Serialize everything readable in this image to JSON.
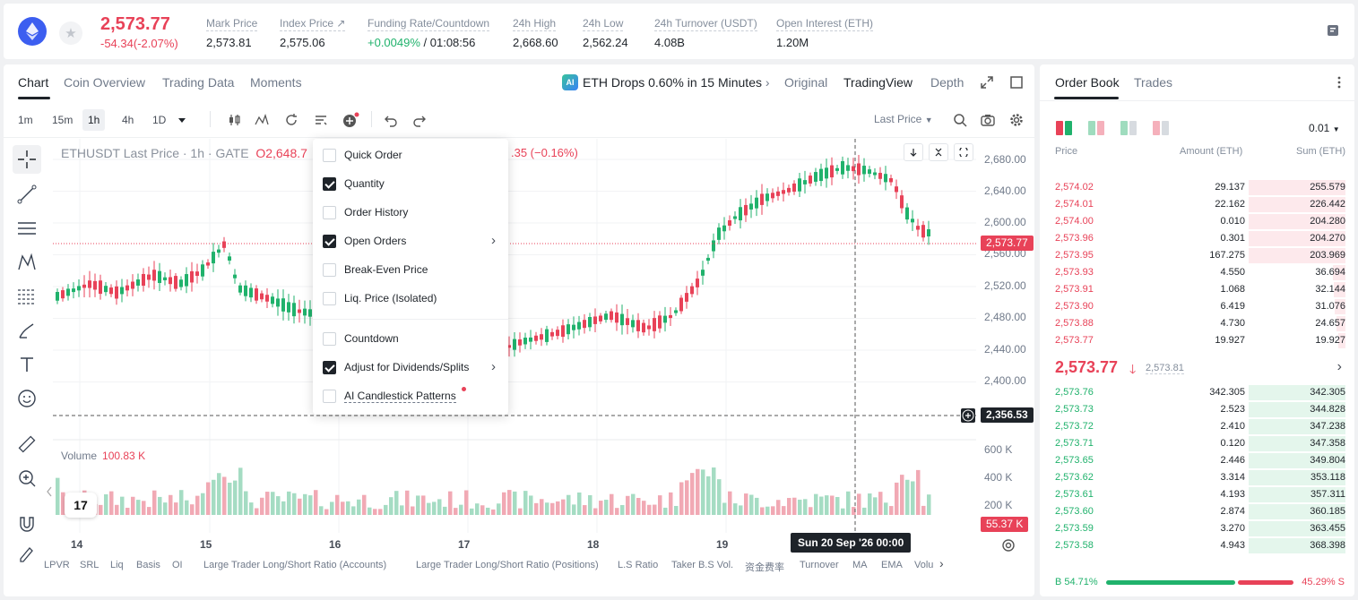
{
  "ticker": {
    "last_price": "2,573.77",
    "change": "-54.34(-2.07%)",
    "stats": [
      {
        "label": "Mark Price",
        "value": "2,573.81"
      },
      {
        "label": "Index Price ↗",
        "value": "2,575.06"
      },
      {
        "label": "Funding Rate/Countdown",
        "value_green": "+0.0049%",
        "value": " / 01:08:56"
      },
      {
        "label": "24h High",
        "value": "2,668.60"
      },
      {
        "label": "24h Low",
        "value": "2,562.24"
      },
      {
        "label": "24h Turnover (USDT)",
        "value": "4.08B"
      },
      {
        "label": "Open Interest (ETH)",
        "value": "1.20M"
      }
    ]
  },
  "chart_tabs": [
    "Chart",
    "Coin Overview",
    "Trading Data",
    "Moments"
  ],
  "ai_alert": {
    "badge": "AI",
    "text": "ETH Drops 0.60% in 15 Minutes",
    "chevron": "›"
  },
  "view_tabs": [
    "Original",
    "TradingView",
    "Depth"
  ],
  "intervals": [
    "1m",
    "15m",
    "1h",
    "4h",
    "1D"
  ],
  "price_type": "Last Price",
  "legend": {
    "main": "ETHUSDT Last Price · 1h · GATE",
    "open": "O2,648.7",
    "tail": ".35 (−0.16%)"
  },
  "volume": {
    "label": "Volume",
    "value": "100.83 K"
  },
  "price_axis": [
    "2,680.00",
    "2,640.00",
    "2,600.00",
    "2,560.00",
    "2,520.00",
    "2,480.00",
    "2,440.00",
    "2,400.00"
  ],
  "volume_axis": [
    "600 K",
    "400 K",
    "200 K"
  ],
  "price_tags": {
    "last": "2,573.77",
    "crosshair": "2,356.53",
    "volume": "55.37 K"
  },
  "x_axis": [
    "14",
    "15",
    "16",
    "17",
    "18",
    "19"
  ],
  "date_tip": "Sun 20 Sep '26   00:00",
  "tv_logo": "17",
  "settings_menu": [
    {
      "label": "Quick Order",
      "checked": false
    },
    {
      "label": "Quantity",
      "checked": true
    },
    {
      "label": "Order History",
      "checked": false
    },
    {
      "label": "Open Orders",
      "checked": true,
      "submenu": true
    },
    {
      "label": "Break-Even Price",
      "checked": false
    },
    {
      "label": "Liq. Price (Isolated)",
      "checked": false
    },
    {
      "label": "Countdown",
      "checked": false
    },
    {
      "label": "Adjust for Dividends/Splits",
      "checked": true,
      "submenu": true
    },
    {
      "label": "AI Candlestick Patterns",
      "checked": false,
      "new_dot": true
    }
  ],
  "indicators": [
    "LPVR",
    "SRL",
    "Liq",
    "Basis",
    "OI",
    "Large Trader Long/Short Ratio (Accounts)",
    "Large Trader Long/Short Ratio (Positions)",
    "L.S Ratio",
    "Taker B.S Vol.",
    "资金费率",
    "Turnover",
    "MA",
    "EMA",
    "Volu"
  ],
  "orderbook": {
    "tabs": [
      "Order Book",
      "Trades"
    ],
    "step": "0.01",
    "headers": {
      "price": "Price",
      "amount": "Amount (ETH)",
      "sum": "Sum (ETH)"
    },
    "asks": [
      {
        "price": "2,574.02",
        "amount": "29.137",
        "sum": "255.579",
        "depth": 0.98
      },
      {
        "price": "2,574.01",
        "amount": "22.162",
        "sum": "226.442",
        "depth": 0.98
      },
      {
        "price": "2,574.00",
        "amount": "0.010",
        "sum": "204.280",
        "depth": 0.98
      },
      {
        "price": "2,573.96",
        "amount": "0.301",
        "sum": "204.270",
        "depth": 0.98
      },
      {
        "price": "2,573.95",
        "amount": "167.275",
        "sum": "203.969",
        "depth": 0.98
      },
      {
        "price": "2,573.93",
        "amount": "4.550",
        "sum": "36.694",
        "depth": 0.13
      },
      {
        "price": "2,573.91",
        "amount": "1.068",
        "sum": "32.144",
        "depth": 0.12
      },
      {
        "price": "2,573.90",
        "amount": "6.419",
        "sum": "31.076",
        "depth": 0.11
      },
      {
        "price": "2,573.88",
        "amount": "4.730",
        "sum": "24.657",
        "depth": 0.09
      },
      {
        "price": "2,573.77",
        "amount": "19.927",
        "sum": "19.927",
        "depth": 0.07
      }
    ],
    "mid": {
      "price": "2,573.77",
      "arrow": "🡓",
      "mark": "2,573.81"
    },
    "bids": [
      {
        "price": "2,573.76",
        "amount": "342.305",
        "sum": "342.305",
        "depth": 0.98
      },
      {
        "price": "2,573.73",
        "amount": "2.523",
        "sum": "344.828",
        "depth": 0.98
      },
      {
        "price": "2,573.72",
        "amount": "2.410",
        "sum": "347.238",
        "depth": 0.98
      },
      {
        "price": "2,573.71",
        "amount": "0.120",
        "sum": "347.358",
        "depth": 0.98
      },
      {
        "price": "2,573.65",
        "amount": "2.446",
        "sum": "349.804",
        "depth": 0.98
      },
      {
        "price": "2,573.62",
        "amount": "3.314",
        "sum": "353.118",
        "depth": 0.98
      },
      {
        "price": "2,573.61",
        "amount": "4.193",
        "sum": "357.311",
        "depth": 0.98
      },
      {
        "price": "2,573.60",
        "amount": "2.874",
        "sum": "360.185",
        "depth": 0.98
      },
      {
        "price": "2,573.59",
        "amount": "3.270",
        "sum": "363.455",
        "depth": 0.98
      },
      {
        "price": "2,573.58",
        "amount": "4.943",
        "sum": "368.398",
        "depth": 0.98
      }
    ],
    "ratio": {
      "buy": "B 54.71%",
      "sell": "45.29% S"
    }
  },
  "colors": {
    "up": "#20b26c",
    "down": "#e84258",
    "accent": "#3c5ef0"
  }
}
